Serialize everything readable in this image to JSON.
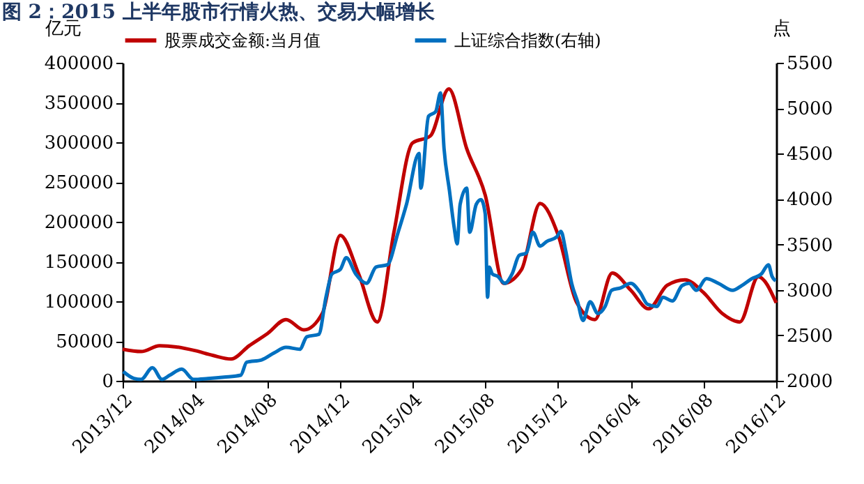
{
  "chart_data": {
    "type": "line",
    "title": "图 2：2015 上半年股市行情火热、交易大幅增长",
    "ylabel": "亿元",
    "y2label": "点",
    "legend": "top",
    "grid": false,
    "xlim": [
      "2013-12-01",
      "2016-12-01"
    ],
    "xticks": [
      {
        "value": "2013-12-01",
        "label": "2013/12"
      },
      {
        "value": "2014-04-01",
        "label": "2014/04"
      },
      {
        "value": "2014-08-01",
        "label": "2014/08"
      },
      {
        "value": "2014-12-01",
        "label": "2014/12"
      },
      {
        "value": "2015-04-01",
        "label": "2015/04"
      },
      {
        "value": "2015-08-01",
        "label": "2015/08"
      },
      {
        "value": "2015-12-01",
        "label": "2015/12"
      },
      {
        "value": "2016-04-01",
        "label": "2016/04"
      },
      {
        "value": "2016-08-01",
        "label": "2016/08"
      },
      {
        "value": "2016-12-01",
        "label": "2016/12"
      }
    ],
    "ylim": [
      0,
      400000
    ],
    "yticks": [
      0,
      50000,
      100000,
      150000,
      200000,
      250000,
      300000,
      350000,
      400000
    ],
    "y2lim": [
      2000,
      5500
    ],
    "y2ticks": [
      2000,
      2500,
      3000,
      3500,
      4000,
      4500,
      5000,
      5500
    ],
    "series": [
      {
        "name": "股票成交金额:当月值",
        "color": "#c00000",
        "x": [
          "2013-12-01",
          "2014-01-01",
          "2014-02-01",
          "2014-03-01",
          "2014-04-01",
          "2014-05-01",
          "2014-06-01",
          "2014-07-01",
          "2014-08-01",
          "2014-09-01",
          "2014-10-01",
          "2014-11-01",
          "2014-12-01",
          "2015-01-01",
          "2015-02-01",
          "2015-03-01",
          "2015-04-01",
          "2015-05-01",
          "2015-06-01",
          "2015-07-01",
          "2015-08-01",
          "2015-09-01",
          "2015-10-01",
          "2015-11-01",
          "2015-12-01",
          "2016-01-01",
          "2016-02-01",
          "2016-03-01",
          "2016-04-01",
          "2016-05-01",
          "2016-06-01",
          "2016-07-01",
          "2016-08-01",
          "2016-09-01",
          "2016-10-01",
          "2016-11-01",
          "2016-12-01"
        ],
        "values": [
          39700,
          36800,
          44000,
          42600,
          38000,
          32000,
          27400,
          44000,
          59500,
          77000,
          64000,
          85000,
          183000,
          134000,
          74000,
          187000,
          299000,
          308000,
          367000,
          292000,
          233600,
          122600,
          140000,
          223000,
          184000,
          99000,
          77000,
          135500,
          114000,
          90500,
          120000,
          127000,
          111000,
          85000,
          74000,
          131000,
          98000
        ]
      },
      {
        "name": "上证综合指数(右轴)",
        "color": "#0070c0",
        "axis": "y2",
        "x": [
          "2013-12-02",
          "2013-12-20",
          "2014-01-01",
          "2014-01-20",
          "2014-02-05",
          "2014-02-18",
          "2014-03-10",
          "2014-03-30",
          "2014-04-23",
          "2014-05-20",
          "2014-06-17",
          "2014-06-27",
          "2014-07-22",
          "2014-08-12",
          "2014-09-01",
          "2014-09-24",
          "2014-10-06",
          "2014-10-26",
          "2014-11-07",
          "2014-11-17",
          "2014-12-01",
          "2014-12-11",
          "2014-12-27",
          "2015-01-14",
          "2015-01-30",
          "2015-02-18",
          "2015-03-08",
          "2015-03-22",
          "2015-04-12",
          "2015-04-15",
          "2015-04-28",
          "2015-05-10",
          "2015-05-18",
          "2015-05-24",
          "2015-06-02",
          "2015-06-10",
          "2015-06-15",
          "2015-06-20",
          "2015-07-01",
          "2015-07-06",
          "2015-07-17",
          "2015-07-25",
          "2015-08-01",
          "2015-08-05",
          "2015-08-08",
          "2015-08-13",
          "2015-08-22",
          "2015-09-03",
          "2015-09-15",
          "2015-09-27",
          "2015-10-09",
          "2015-10-20",
          "2015-11-01",
          "2015-11-12",
          "2015-11-29",
          "2015-12-06",
          "2015-12-14",
          "2015-12-24",
          "2016-01-03",
          "2016-01-12",
          "2016-01-24",
          "2016-02-06",
          "2016-02-18",
          "2016-02-29",
          "2016-03-15",
          "2016-04-01",
          "2016-04-17",
          "2016-04-29",
          "2016-05-15",
          "2016-05-25",
          "2016-06-10",
          "2016-06-26",
          "2016-07-08",
          "2016-07-20",
          "2016-08-06",
          "2016-08-26",
          "2016-09-19",
          "2016-10-04",
          "2016-10-21",
          "2016-11-06",
          "2016-11-18",
          "2016-11-24",
          "2016-11-30"
        ],
        "values": [
          2102,
          2026,
          2015,
          2143,
          2015,
          2061,
          2128,
          2015,
          2025,
          2040,
          2061,
          2204,
          2230,
          2307,
          2368,
          2347,
          2485,
          2511,
          2920,
          3175,
          3226,
          3354,
          3175,
          3073,
          3252,
          3277,
          3635,
          3942,
          4503,
          4120,
          4912,
          4963,
          5168,
          4555,
          4095,
          3686,
          3507,
          3942,
          4120,
          3635,
          3942,
          3993,
          3839,
          2920,
          3252,
          3175,
          3150,
          3073,
          3175,
          3380,
          3405,
          3635,
          3482,
          3533,
          3584,
          3645,
          3431,
          3073,
          2869,
          2664,
          2869,
          2741,
          2818,
          2996,
          3022,
          3073,
          2971,
          2843,
          2818,
          2920,
          2879,
          3047,
          3073,
          2996,
          3124,
          3073,
          2996,
          3047,
          3124,
          3175,
          3277,
          3150,
          3098
        ]
      }
    ]
  }
}
